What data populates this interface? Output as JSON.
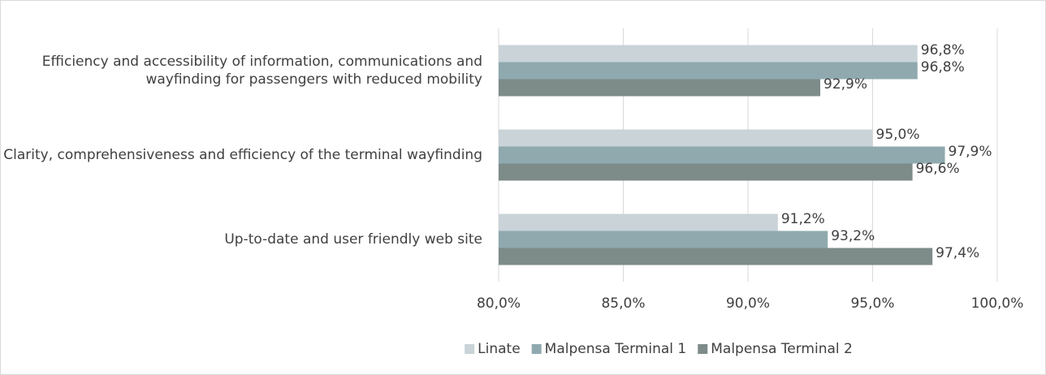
{
  "chart_data": {
    "type": "barh",
    "categories": [
      "Efficiency and accessibility of information, communications and  wayfinding for passengers with reduced mobility",
      "Clarity, comprehensiveness and efficiency of the terminal wayfinding",
      "Up-to-date and user friendly web site"
    ],
    "series": [
      {
        "name": "Linate",
        "color": "#c9d3d8",
        "values": [
          96.8,
          95.0,
          91.2
        ],
        "value_labels": [
          "96,8%",
          "95,0%",
          "91,2%"
        ]
      },
      {
        "name": "Malpensa Terminal 1",
        "color": "#8fa9af",
        "values": [
          96.8,
          97.9,
          93.2
        ],
        "value_labels": [
          "96,8%",
          "97,9%",
          "93,2%"
        ]
      },
      {
        "name": "Malpensa Terminal 2",
        "color": "#7d8b89",
        "values": [
          92.9,
          96.6,
          97.4
        ],
        "value_labels": [
          "92,9%",
          "96,6%",
          "97,4%"
        ]
      }
    ],
    "xlim": [
      80,
      100
    ],
    "xticks": [
      {
        "value": 80,
        "label": "80,0%"
      },
      {
        "value": 85,
        "label": "85,0%"
      },
      {
        "value": 90,
        "label": "90,0%"
      },
      {
        "value": 95,
        "label": "95,0%"
      },
      {
        "value": 100,
        "label": "100,0%"
      }
    ],
    "grid": true,
    "legend": "bottom"
  }
}
